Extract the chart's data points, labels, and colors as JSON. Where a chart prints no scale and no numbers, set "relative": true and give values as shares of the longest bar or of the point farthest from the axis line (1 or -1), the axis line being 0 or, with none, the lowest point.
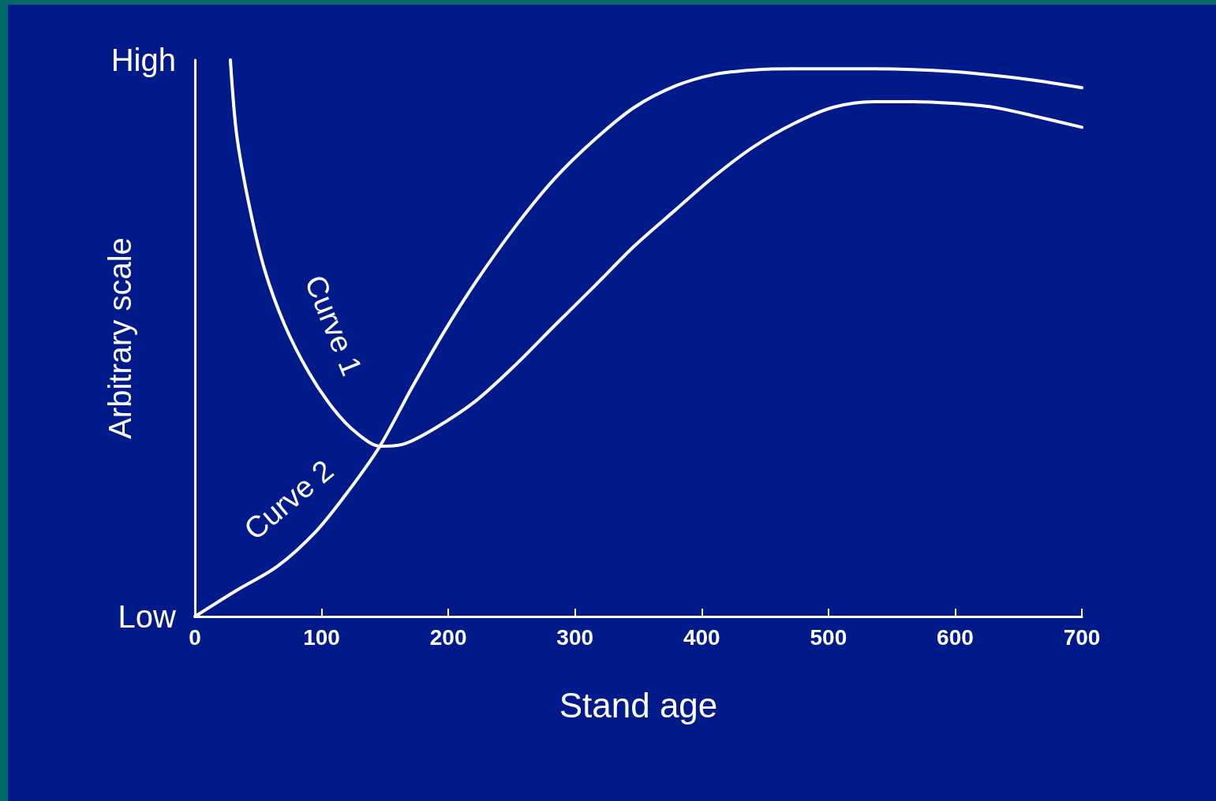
{
  "chart_data": {
    "type": "line",
    "xlabel": "Stand age",
    "ylabel": "Arbitrary scale",
    "xlim": [
      0,
      700
    ],
    "xticks": [
      0,
      100,
      200,
      300,
      400,
      500,
      600,
      700
    ],
    "relative": true,
    "annotations": [
      "High",
      "Low"
    ],
    "grid": false,
    "legend": false,
    "marker": "none",
    "line_style": "solid",
    "series": [
      {
        "name": "Curve 1",
        "color": "#ffffff",
        "x": [
          28,
          33,
          43,
          55,
          71,
          90,
          109,
          127,
          146,
          165,
          190,
          222,
          253,
          284,
          316,
          347,
          379,
          410,
          441,
          473,
          504,
          536,
          567,
          598,
          630,
          661,
          700
        ],
        "values": [
          1.0,
          0.865,
          0.737,
          0.623,
          0.523,
          0.438,
          0.374,
          0.331,
          0.306,
          0.31,
          0.339,
          0.388,
          0.452,
          0.523,
          0.595,
          0.666,
          0.73,
          0.791,
          0.844,
          0.886,
          0.915,
          0.925,
          0.925,
          0.922,
          0.915,
          0.9,
          0.879
        ]
      },
      {
        "name": "Curve 2",
        "color": "#ffffff",
        "x": [
          0,
          33,
          65,
          96,
          121,
          146,
          171,
          196,
          222,
          253,
          284,
          316,
          347,
          379,
          410,
          441,
          473,
          536,
          598,
          661,
          700
        ],
        "values": [
          0,
          0.047,
          0.09,
          0.154,
          0.225,
          0.306,
          0.41,
          0.509,
          0.602,
          0.701,
          0.787,
          0.858,
          0.915,
          0.953,
          0.974,
          0.982,
          0.984,
          0.984,
          0.979,
          0.964,
          0.95
        ]
      }
    ]
  }
}
